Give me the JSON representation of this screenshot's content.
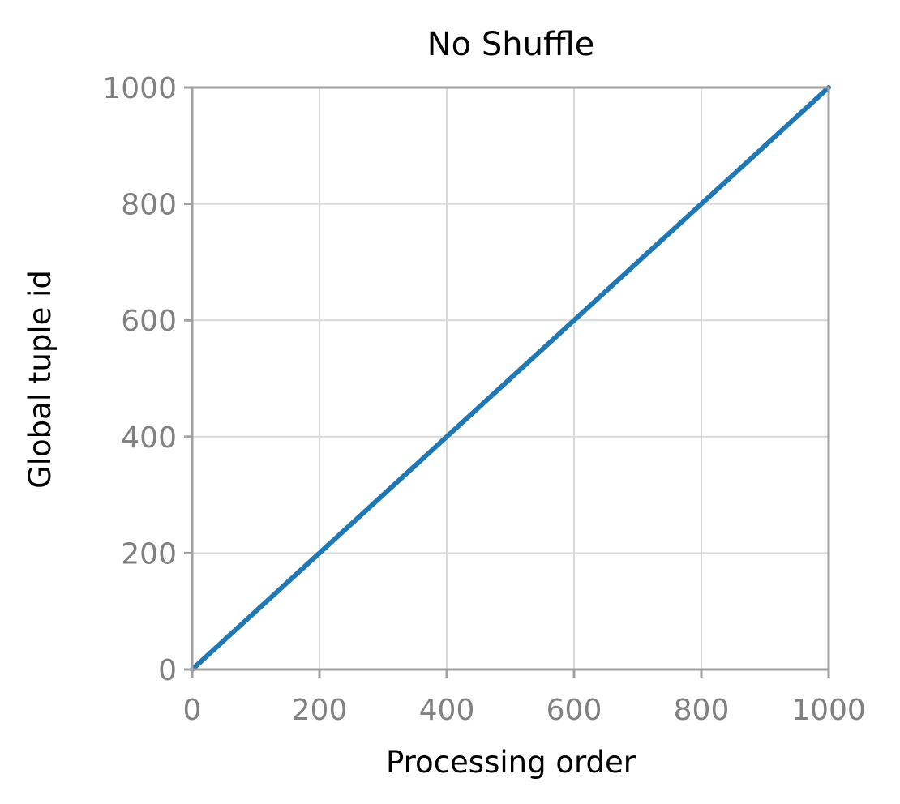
{
  "chart_data": {
    "type": "line",
    "title": "No Shuffle",
    "xlabel": "Processing order",
    "ylabel": "Global tuple id",
    "xlim": [
      0,
      1000
    ],
    "ylim": [
      0,
      1000
    ],
    "x_ticks": [
      0,
      200,
      400,
      600,
      800,
      1000
    ],
    "y_ticks": [
      0,
      200,
      400,
      600,
      800,
      1000
    ],
    "grid": true,
    "legend": "none",
    "series": [
      {
        "color": "#1f77b4",
        "x": [
          0,
          100,
          200,
          300,
          400,
          500,
          600,
          700,
          800,
          900,
          1000
        ],
        "y": [
          0,
          100,
          200,
          300,
          400,
          500,
          600,
          700,
          800,
          900,
          1000
        ]
      }
    ],
    "colors": {
      "line": "#1f77b4",
      "grid": "#d9d9d9",
      "spine": "#a0a0a0",
      "tick_label": "#808080"
    }
  }
}
